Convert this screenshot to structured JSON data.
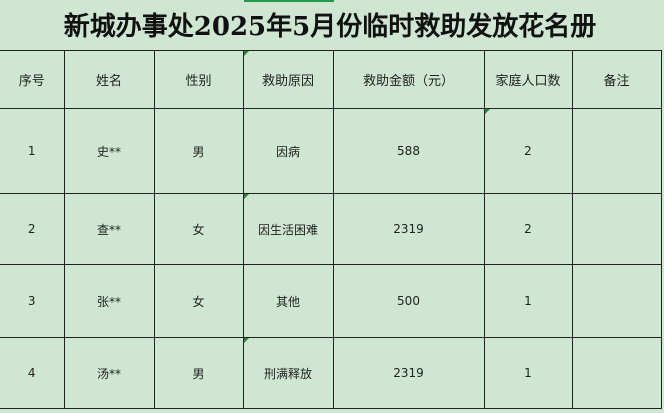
{
  "title": "新城办事处2025年5月份临时救助发放花名册",
  "headers": [
    "序号",
    "姓名",
    "性别",
    "救助原因",
    "救助金额（元）",
    "家庭人口数",
    "备注"
  ],
  "rows": [
    [
      "1",
      "史**",
      "男",
      "因病",
      "588",
      "2",
      ""
    ],
    [
      "2",
      "查**",
      "女",
      "因生活困难",
      "2319",
      "2",
      ""
    ],
    [
      "3",
      "张**",
      "女",
      "其他",
      "500",
      "1",
      ""
    ],
    [
      "4",
      "汤**",
      "男",
      "刑满释放",
      "2319",
      "1",
      ""
    ]
  ],
  "colors": {
    "background": "#cfe7d2",
    "comment_marker": "#1f8a2e"
  }
}
